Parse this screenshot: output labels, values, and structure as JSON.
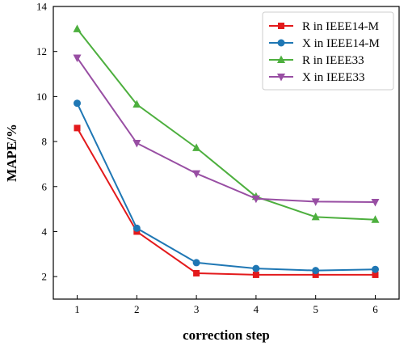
{
  "chart_data": {
    "type": "line",
    "title": "",
    "xlabel": "correction step",
    "ylabel": "MAPE/%",
    "x": [
      1,
      2,
      3,
      4,
      5,
      6
    ],
    "xticks": [
      "1",
      "2",
      "3",
      "4",
      "5",
      "6"
    ],
    "xlim": [
      0.6,
      6.4
    ],
    "yticks": [
      "2",
      "4",
      "6",
      "8",
      "10",
      "12",
      "14"
    ],
    "ylim": [
      1,
      14
    ],
    "grid": false,
    "legend_position": "top-right",
    "series": [
      {
        "name": "R in IEEE14-M",
        "color": "#e31a1c",
        "marker": "square",
        "values": [
          8.6,
          4.0,
          2.15,
          2.08,
          2.08,
          2.08
        ]
      },
      {
        "name": "X in IEEE14-M",
        "color": "#1f77b4",
        "marker": "circle",
        "values": [
          9.7,
          4.15,
          2.62,
          2.36,
          2.27,
          2.32
        ]
      },
      {
        "name": "R in IEEE33",
        "color": "#4daf3e",
        "marker": "triangle-up",
        "values": [
          13.0,
          9.65,
          7.72,
          5.55,
          4.65,
          4.53
        ]
      },
      {
        "name": "X in IEEE33",
        "color": "#984ea3",
        "marker": "triangle-down",
        "values": [
          11.72,
          7.93,
          6.58,
          5.46,
          5.33,
          5.31
        ]
      }
    ]
  }
}
